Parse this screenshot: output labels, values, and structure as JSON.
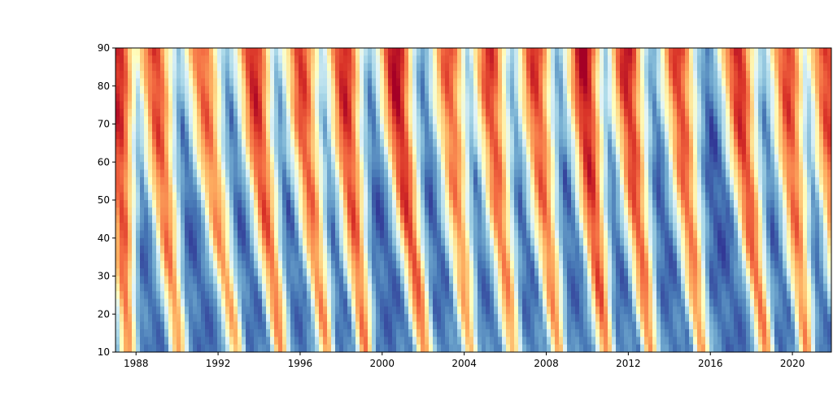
{
  "chart_data": {
    "type": "heatmap",
    "title": "",
    "xlabel": "",
    "ylabel": "",
    "xlim": [
      1987.0,
      2021.9
    ],
    "ylim": [
      10,
      90
    ],
    "grid": false,
    "legend": "none",
    "colormap": "RdYlBu_r",
    "x_ticks": [
      1988,
      1992,
      1996,
      2000,
      2004,
      2008,
      2012,
      2016,
      2020
    ],
    "y_ticks": [
      10,
      20,
      30,
      40,
      50,
      60,
      70,
      80,
      90
    ],
    "x_tick_labels": [
      "1988",
      "1992",
      "1996",
      "2000",
      "2004",
      "2008",
      "2012",
      "2016",
      "2020"
    ],
    "y_tick_labels": [
      "10",
      "20",
      "30",
      "40",
      "50",
      "60",
      "70",
      "80",
      "90"
    ],
    "warm_band_top_years": [
      1987.1,
      1988.9,
      1991.2,
      1993.7,
      1996.0,
      1998.1,
      2000.6,
      2003.2,
      2005.2,
      2007.4,
      2009.8,
      2011.9,
      2014.4,
      2017.3,
      2019.7,
      2021.6
    ],
    "warm_band_bottom_years": [
      1987.6,
      1990.1,
      1992.9,
      1995.1,
      1997.3,
      1999.2,
      2002.1,
      2004.3,
      2006.4,
      2008.6,
      2010.9,
      2013.1,
      2015.6,
      2018.7,
      2020.7,
      2022.6
    ],
    "warm_band_intensity": [
      0.95,
      0.9,
      0.85,
      0.95,
      0.9,
      0.95,
      1.0,
      0.85,
      0.9,
      0.9,
      1.0,
      0.95,
      0.9,
      0.95,
      0.9,
      0.9
    ],
    "tilt_curvature": 1.4
  }
}
